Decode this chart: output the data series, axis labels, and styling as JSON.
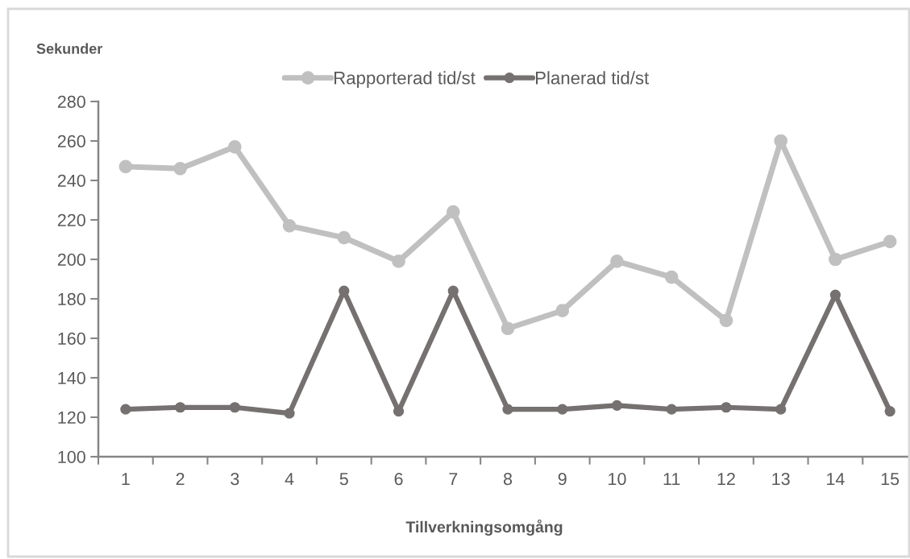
{
  "chart_data": {
    "type": "line",
    "ylabel": "Sekunder",
    "xlabel": "Tillverkningsomgång",
    "categories": [
      "1",
      "2",
      "3",
      "4",
      "5",
      "6",
      "7",
      "8",
      "9",
      "10",
      "11",
      "12",
      "13",
      "14",
      "15"
    ],
    "series": [
      {
        "name": "Rapporterad tid/st",
        "color": "#c0c0c0",
        "values": [
          247,
          246,
          257,
          217,
          211,
          199,
          224,
          165,
          174,
          199,
          191,
          169,
          260,
          200,
          209
        ]
      },
      {
        "name": "Planerad tid/st",
        "color": "#767171",
        "values": [
          124,
          125,
          125,
          122,
          184,
          123,
          184,
          124,
          124,
          126,
          124,
          125,
          124,
          182,
          123
        ]
      }
    ],
    "ylim": [
      100,
      280
    ],
    "yticks": [
      100,
      120,
      140,
      160,
      180,
      200,
      220,
      240,
      260,
      280
    ],
    "grid": false,
    "legend": "top",
    "marker": "circle",
    "line_style": "solid"
  }
}
